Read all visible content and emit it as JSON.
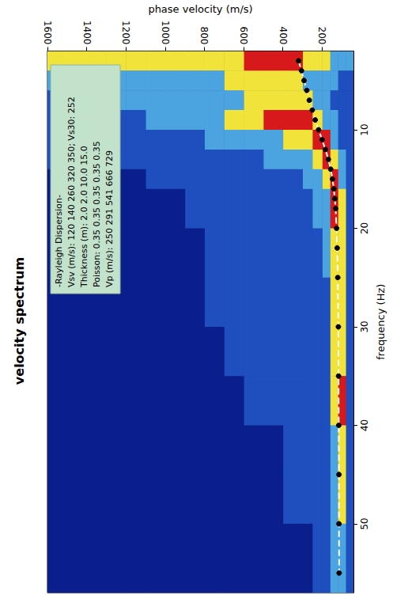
{
  "chart_data": {
    "type": "line",
    "title": "velocity spectrum",
    "x_label": "frequency (Hz)",
    "y_label": "phase velocity (m/s)",
    "xlim": [
      2,
      57
    ],
    "xticks": [
      10,
      20,
      30,
      40,
      50
    ],
    "ylim": [
      40,
      1600
    ],
    "yticks": [
      200,
      400,
      600,
      800,
      1000,
      1200,
      1400,
      1600
    ],
    "grid": false,
    "x": [
      3,
      4,
      5,
      6,
      7,
      8,
      9,
      10,
      11,
      12,
      13,
      14,
      15,
      16,
      17,
      18,
      20,
      22,
      25,
      30,
      35,
      40,
      45,
      50,
      55
    ],
    "values": [
      320,
      305,
      292,
      278,
      265,
      250,
      235,
      218,
      200,
      183,
      168,
      156,
      147,
      140,
      135,
      131,
      126,
      123,
      120,
      117,
      116,
      115,
      114,
      114,
      113
    ],
    "color": "#ffffff",
    "marker": "circle",
    "line_style": "dashed",
    "annotation": [
      "-Rayleigh Dispersion-",
      "Vsv (m/s): 120 140 260 320 350; Vs30: 252",
      "Thickness (m): 2.0 2.0 10.0 15.0",
      "Poisson: 0.35 0.35 0.35 0.35 0.35",
      "Vp (m/s): 250 291 541 666 729"
    ],
    "spectrum": {
      "frequency_edges": [
        2,
        4,
        6,
        8,
        10,
        12,
        14,
        16,
        20,
        25,
        30,
        35,
        40,
        45,
        50,
        57
      ],
      "velocity_edges": [
        40,
        80,
        120,
        160,
        200,
        250,
        300,
        400,
        500,
        600,
        700,
        800,
        900,
        1000,
        1100,
        1200,
        1300,
        1400,
        1500,
        1600
      ],
      "levels": [
        [
          2,
          2,
          2,
          3,
          3,
          3,
          4,
          4,
          4,
          3,
          3,
          3,
          3,
          3,
          3,
          3,
          3,
          3,
          3
        ],
        [
          1,
          1,
          2,
          2,
          2,
          2,
          3,
          3,
          3,
          3,
          2,
          2,
          2,
          2,
          2,
          2,
          2,
          2,
          2
        ],
        [
          1,
          1,
          1,
          2,
          2,
          3,
          3,
          3,
          3,
          2,
          2,
          2,
          2,
          2,
          2,
          2,
          1,
          1,
          1
        ],
        [
          1,
          1,
          2,
          2,
          3,
          4,
          4,
          4,
          3,
          3,
          2,
          2,
          2,
          2,
          1,
          1,
          1,
          1,
          1
        ],
        [
          1,
          1,
          2,
          4,
          4,
          3,
          3,
          2,
          2,
          2,
          2,
          1,
          1,
          1,
          1,
          1,
          1,
          1,
          1
        ],
        [
          1,
          2,
          3,
          4,
          3,
          2,
          2,
          2,
          1,
          1,
          1,
          1,
          1,
          1,
          1,
          1,
          1,
          1,
          1
        ],
        [
          1,
          2,
          4,
          3,
          2,
          2,
          1,
          1,
          1,
          1,
          1,
          1,
          1,
          1,
          0,
          0,
          0,
          0,
          0
        ],
        [
          1,
          3,
          4,
          2,
          2,
          1,
          1,
          1,
          1,
          1,
          1,
          1,
          0,
          0,
          0,
          0,
          0,
          0,
          0
        ],
        [
          1,
          3,
          3,
          2,
          1,
          1,
          1,
          1,
          1,
          1,
          1,
          0,
          0,
          0,
          0,
          0,
          0,
          0,
          0
        ],
        [
          1,
          3,
          3,
          1,
          1,
          1,
          1,
          1,
          1,
          1,
          1,
          0,
          0,
          0,
          0,
          0,
          0,
          0,
          0
        ],
        [
          1,
          3,
          3,
          1,
          1,
          1,
          1,
          1,
          1,
          1,
          0,
          0,
          0,
          0,
          0,
          0,
          0,
          0,
          0
        ],
        [
          1,
          4,
          3,
          1,
          1,
          1,
          1,
          1,
          1,
          0,
          0,
          0,
          0,
          0,
          0,
          0,
          0,
          0,
          0
        ],
        [
          1,
          3,
          2,
          1,
          1,
          1,
          1,
          0,
          0,
          0,
          0,
          0,
          0,
          0,
          0,
          0,
          0,
          0,
          0
        ],
        [
          1,
          3,
          2,
          1,
          1,
          1,
          1,
          0,
          0,
          0,
          0,
          0,
          0,
          0,
          0,
          0,
          0,
          0,
          0
        ],
        [
          1,
          2,
          2,
          1,
          1,
          0,
          0,
          0,
          0,
          0,
          0,
          0,
          0,
          0,
          0,
          0,
          0,
          0,
          0
        ]
      ]
    }
  }
}
